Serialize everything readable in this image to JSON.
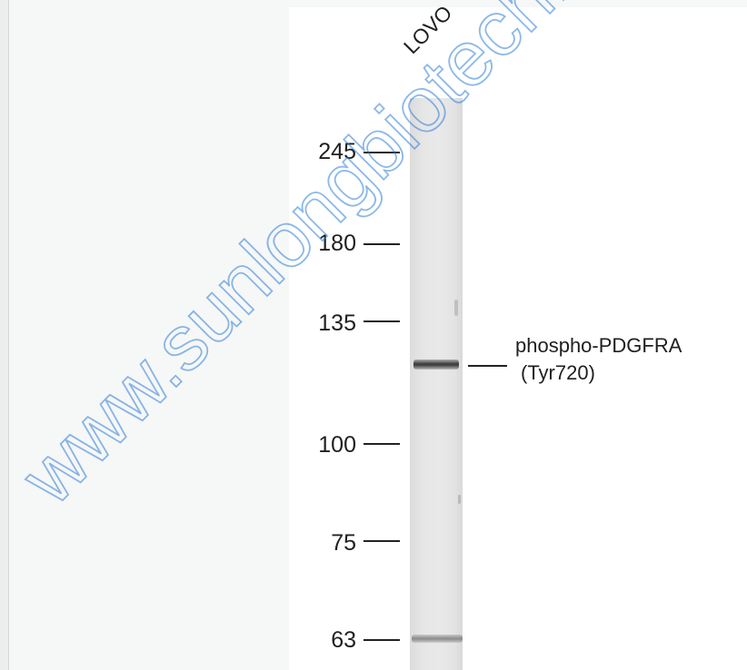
{
  "blot": {
    "lane_label": "LOVO",
    "markers": [
      {
        "label": "245",
        "kda": 245
      },
      {
        "label": "180",
        "kda": 180
      },
      {
        "label": "135",
        "kda": 135
      },
      {
        "label": "100",
        "kda": 100
      },
      {
        "label": "75",
        "kda": 75
      },
      {
        "label": "63",
        "kda": 63
      }
    ],
    "target": {
      "line1": "phospho-PDGFRA",
      "line2": "(Tyr720)"
    }
  },
  "watermark": {
    "text": "www.sunlongbiotech.com",
    "color": "#2e7fd8"
  },
  "colors": {
    "background": "#f6f7f7",
    "panel": "#ffffff",
    "text": "#1f1f1f"
  }
}
